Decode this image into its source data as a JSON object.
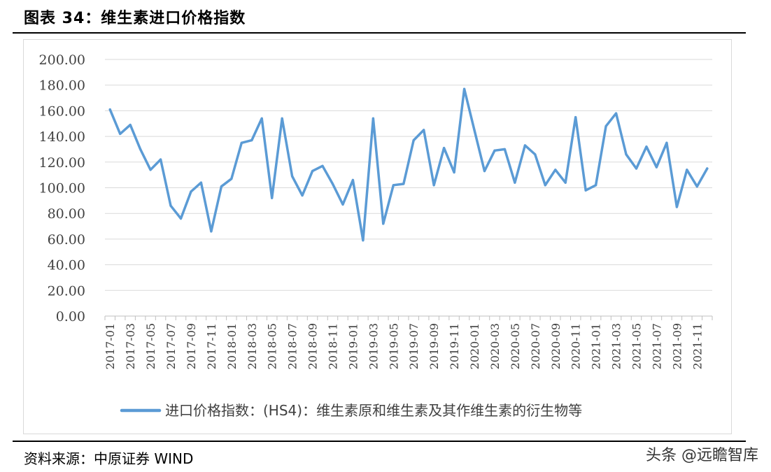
{
  "title": "图表 34：维生素进口价格指数",
  "source": "资料来源：中原证券   WIND",
  "watermark": "头条 @远瞻智库",
  "colors": {
    "line": "#5b9bd5",
    "grid": "#d9d9d9",
    "axis_text": "#404040"
  },
  "chart_data": {
    "type": "line",
    "title": "",
    "xlabel": "",
    "ylabel": "",
    "ylim": [
      0,
      200
    ],
    "yticks": [
      "0.00",
      "20.00",
      "40.00",
      "60.00",
      "80.00",
      "100.00",
      "120.00",
      "140.00",
      "160.00",
      "180.00",
      "200.00"
    ],
    "grid": true,
    "legend_position": "bottom",
    "x": [
      "2017-01",
      "2017-02",
      "2017-03",
      "2017-04",
      "2017-05",
      "2017-06",
      "2017-07",
      "2017-08",
      "2017-09",
      "2017-10",
      "2017-11",
      "2017-12",
      "2018-01",
      "2018-02",
      "2018-03",
      "2018-04",
      "2018-05",
      "2018-06",
      "2018-07",
      "2018-08",
      "2018-09",
      "2018-10",
      "2018-11",
      "2018-12",
      "2019-01",
      "2019-02",
      "2019-03",
      "2019-04",
      "2019-05",
      "2019-06",
      "2019-07",
      "2019-08",
      "2019-09",
      "2019-10",
      "2019-11",
      "2019-12",
      "2020-01",
      "2020-02",
      "2020-03",
      "2020-04",
      "2020-05",
      "2020-06",
      "2020-07",
      "2020-08",
      "2020-09",
      "2020-10",
      "2020-11",
      "2020-12",
      "2021-01",
      "2021-02",
      "2021-03",
      "2021-04",
      "2021-05",
      "2021-06",
      "2021-07",
      "2021-08",
      "2021-09",
      "2021-10",
      "2021-11",
      "2021-12"
    ],
    "xtick_labels": [
      "2017-01",
      "2017-03",
      "2017-05",
      "2017-07",
      "2017-09",
      "2017-11",
      "2018-01",
      "2018-03",
      "2018-05",
      "2018-07",
      "2018-09",
      "2018-11",
      "2019-01",
      "2019-03",
      "2019-05",
      "2019-07",
      "2019-09",
      "2019-11",
      "2020-01",
      "2020-03",
      "2020-05",
      "2020-07",
      "2020-09",
      "2020-11",
      "2021-01",
      "2021-03",
      "2021-05",
      "2021-07",
      "2021-09",
      "2021-11"
    ],
    "series": [
      {
        "name": "进口价格指数：(HS4)：维生素原和维生素及其作维生素的衍生物等",
        "values": [
          161,
          142,
          149,
          130,
          114,
          122,
          86,
          76,
          97,
          104,
          66,
          101,
          107,
          135,
          137,
          154,
          92,
          154,
          109,
          94,
          113,
          117,
          103,
          87,
          106,
          59,
          154,
          72,
          102,
          103,
          137,
          145,
          102,
          131,
          112,
          177,
          145,
          113,
          129,
          130,
          104,
          133,
          126,
          102,
          114,
          104,
          155,
          98,
          102,
          148,
          158,
          126,
          115,
          132,
          116,
          135,
          85,
          114,
          101,
          115
        ]
      }
    ]
  }
}
